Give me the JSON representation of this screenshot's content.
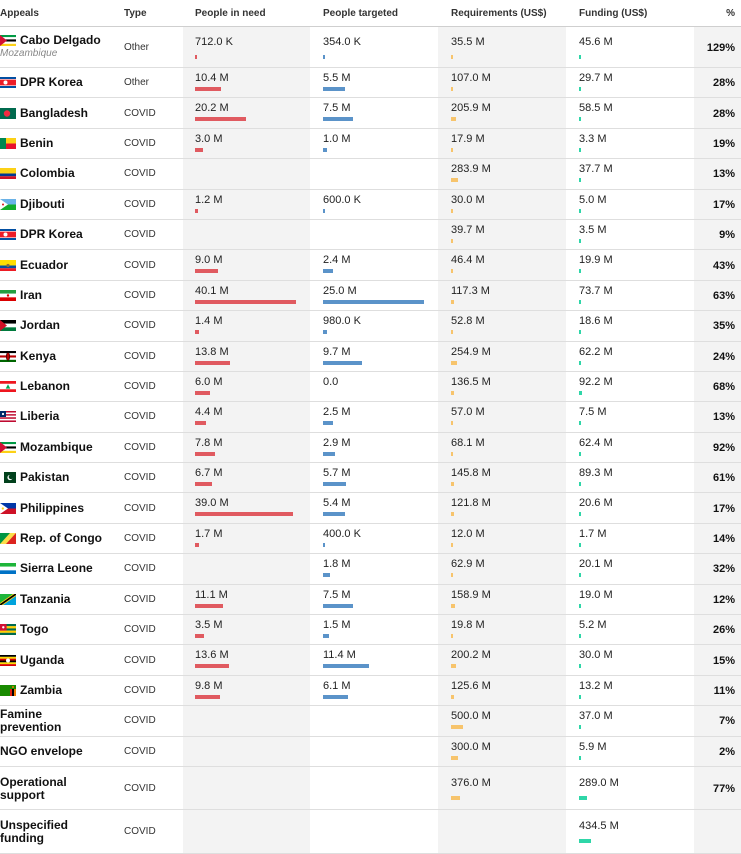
{
  "headers": {
    "appeals": "Appeals",
    "type": "Type",
    "people_in_need": "People in need",
    "people_targeted": "People targeted",
    "requirements": "Requirements (US$)",
    "funding": "Funding (US$)",
    "percent": "%"
  },
  "colors": {
    "need": "#e05a60",
    "targeted": "#5b93c9",
    "requirements": "#f7c46c",
    "funding": "#2fd6a8"
  },
  "chart_data": {
    "type": "table",
    "units": {
      "people": "M",
      "money": "US$ M"
    },
    "rows": [
      {
        "appeal": "Cabo Delgado",
        "subtitle": "Mozambique",
        "type": "Other",
        "flag": "mozambique-flag",
        "need": 0.712,
        "need_label": "712.0 K",
        "targeted": 0.354,
        "targeted_label": "354.0 K",
        "requirements": 35.5,
        "requirements_label": "35.5 M",
        "funding": 45.6,
        "funding_label": "45.6 M",
        "percent_label": "129%"
      },
      {
        "appeal": "DPR Korea",
        "type": "Other",
        "flag": "dpr-korea-flag",
        "need": 10.4,
        "need_label": "10.4 M",
        "targeted": 5.5,
        "targeted_label": "5.5 M",
        "requirements": 107.0,
        "requirements_label": "107.0 M",
        "funding": 29.7,
        "funding_label": "29.7 M",
        "percent_label": "28%"
      },
      {
        "appeal": "Bangladesh",
        "type": "COVID",
        "flag": "bangladesh-flag",
        "need": 20.2,
        "need_label": "20.2 M",
        "targeted": 7.5,
        "targeted_label": "7.5 M",
        "requirements": 205.9,
        "requirements_label": "205.9 M",
        "funding": 58.5,
        "funding_label": "58.5 M",
        "percent_label": "28%"
      },
      {
        "appeal": "Benin",
        "type": "COVID",
        "flag": "benin-flag",
        "need": 3.0,
        "need_label": "3.0 M",
        "targeted": 1.0,
        "targeted_label": "1.0 M",
        "requirements": 17.9,
        "requirements_label": "17.9 M",
        "funding": 3.3,
        "funding_label": "3.3 M",
        "percent_label": "19%"
      },
      {
        "appeal": "Colombia",
        "type": "COVID",
        "flag": "colombia-flag",
        "need": null,
        "need_label": "",
        "targeted": null,
        "targeted_label": "",
        "requirements": 283.9,
        "requirements_label": "283.9 M",
        "funding": 37.7,
        "funding_label": "37.7 M",
        "percent_label": "13%"
      },
      {
        "appeal": "Djibouti",
        "type": "COVID",
        "flag": "djibouti-flag",
        "need": 1.2,
        "need_label": "1.2 M",
        "targeted": 0.6,
        "targeted_label": "600.0 K",
        "requirements": 30.0,
        "requirements_label": "30.0 M",
        "funding": 5.0,
        "funding_label": "5.0 M",
        "percent_label": "17%"
      },
      {
        "appeal": "DPR Korea",
        "type": "COVID",
        "flag": "dpr-korea-flag",
        "need": null,
        "need_label": "",
        "targeted": null,
        "targeted_label": "",
        "requirements": 39.7,
        "requirements_label": "39.7 M",
        "funding": 3.5,
        "funding_label": "3.5 M",
        "percent_label": "9%"
      },
      {
        "appeal": "Ecuador",
        "type": "COVID",
        "flag": "ecuador-flag",
        "need": 9.0,
        "need_label": "9.0 M",
        "targeted": 2.4,
        "targeted_label": "2.4 M",
        "requirements": 46.4,
        "requirements_label": "46.4 M",
        "funding": 19.9,
        "funding_label": "19.9 M",
        "percent_label": "43%"
      },
      {
        "appeal": "Iran",
        "type": "COVID",
        "flag": "iran-flag",
        "need": 40.1,
        "need_label": "40.1 M",
        "targeted": 25.0,
        "targeted_label": "25.0 M",
        "requirements": 117.3,
        "requirements_label": "117.3 M",
        "funding": 73.7,
        "funding_label": "73.7 M",
        "percent_label": "63%"
      },
      {
        "appeal": "Jordan",
        "type": "COVID",
        "flag": "jordan-flag",
        "need": 1.4,
        "need_label": "1.4 M",
        "targeted": 0.98,
        "targeted_label": "980.0 K",
        "requirements": 52.8,
        "requirements_label": "52.8 M",
        "funding": 18.6,
        "funding_label": "18.6 M",
        "percent_label": "35%"
      },
      {
        "appeal": "Kenya",
        "type": "COVID",
        "flag": "kenya-flag",
        "need": 13.8,
        "need_label": "13.8 M",
        "targeted": 9.7,
        "targeted_label": "9.7 M",
        "requirements": 254.9,
        "requirements_label": "254.9 M",
        "funding": 62.2,
        "funding_label": "62.2 M",
        "percent_label": "24%"
      },
      {
        "appeal": "Lebanon",
        "type": "COVID",
        "flag": "lebanon-flag",
        "need": 6.0,
        "need_label": "6.0 M",
        "targeted": 0.0,
        "targeted_label": "0.0",
        "requirements": 136.5,
        "requirements_label": "136.5 M",
        "funding": 92.2,
        "funding_label": "92.2 M",
        "percent_label": "68%"
      },
      {
        "appeal": "Liberia",
        "type": "COVID",
        "flag": "liberia-flag",
        "need": 4.4,
        "need_label": "4.4 M",
        "targeted": 2.5,
        "targeted_label": "2.5 M",
        "requirements": 57.0,
        "requirements_label": "57.0 M",
        "funding": 7.5,
        "funding_label": "7.5 M",
        "percent_label": "13%"
      },
      {
        "appeal": "Mozambique",
        "type": "COVID",
        "flag": "mozambique-flag",
        "need": 7.8,
        "need_label": "7.8 M",
        "targeted": 2.9,
        "targeted_label": "2.9 M",
        "requirements": 68.1,
        "requirements_label": "68.1 M",
        "funding": 62.4,
        "funding_label": "62.4 M",
        "percent_label": "92%"
      },
      {
        "appeal": "Pakistan",
        "type": "COVID",
        "flag": "pakistan-flag",
        "need": 6.7,
        "need_label": "6.7 M",
        "targeted": 5.7,
        "targeted_label": "5.7 M",
        "requirements": 145.8,
        "requirements_label": "145.8 M",
        "funding": 89.3,
        "funding_label": "89.3 M",
        "percent_label": "61%"
      },
      {
        "appeal": "Philippines",
        "type": "COVID",
        "flag": "philippines-flag",
        "need": 39.0,
        "need_label": "39.0 M",
        "targeted": 5.4,
        "targeted_label": "5.4 M",
        "requirements": 121.8,
        "requirements_label": "121.8 M",
        "funding": 20.6,
        "funding_label": "20.6 M",
        "percent_label": "17%"
      },
      {
        "appeal": "Rep. of Congo",
        "type": "COVID",
        "flag": "congo-flag",
        "need": 1.7,
        "need_label": "1.7 M",
        "targeted": 0.4,
        "targeted_label": "400.0 K",
        "requirements": 12.0,
        "requirements_label": "12.0 M",
        "funding": 1.7,
        "funding_label": "1.7 M",
        "percent_label": "14%"
      },
      {
        "appeal": "Sierra Leone",
        "type": "COVID",
        "flag": "sierra-leone-flag",
        "need": null,
        "need_label": "",
        "targeted": 1.8,
        "targeted_label": "1.8 M",
        "requirements": 62.9,
        "requirements_label": "62.9 M",
        "funding": 20.1,
        "funding_label": "20.1 M",
        "percent_label": "32%"
      },
      {
        "appeal": "Tanzania",
        "type": "COVID",
        "flag": "tanzania-flag",
        "need": 11.1,
        "need_label": "11.1 M",
        "targeted": 7.5,
        "targeted_label": "7.5 M",
        "requirements": 158.9,
        "requirements_label": "158.9 M",
        "funding": 19.0,
        "funding_label": "19.0 M",
        "percent_label": "12%"
      },
      {
        "appeal": "Togo",
        "type": "COVID",
        "flag": "togo-flag",
        "need": 3.5,
        "need_label": "3.5 M",
        "targeted": 1.5,
        "targeted_label": "1.5 M",
        "requirements": 19.8,
        "requirements_label": "19.8 M",
        "funding": 5.2,
        "funding_label": "5.2 M",
        "percent_label": "26%"
      },
      {
        "appeal": "Uganda",
        "type": "COVID",
        "flag": "uganda-flag",
        "need": 13.6,
        "need_label": "13.6 M",
        "targeted": 11.4,
        "targeted_label": "11.4 M",
        "requirements": 200.2,
        "requirements_label": "200.2 M",
        "funding": 30.0,
        "funding_label": "30.0 M",
        "percent_label": "15%"
      },
      {
        "appeal": "Zambia",
        "type": "COVID",
        "flag": "zambia-flag",
        "need": 9.8,
        "need_label": "9.8 M",
        "targeted": 6.1,
        "targeted_label": "6.1 M",
        "requirements": 125.6,
        "requirements_label": "125.6 M",
        "funding": 13.2,
        "funding_label": "13.2 M",
        "percent_label": "11%"
      },
      {
        "appeal": "Famine prevention",
        "type": "COVID",
        "flag": "",
        "need": null,
        "need_label": "",
        "targeted": null,
        "targeted_label": "",
        "requirements": 500.0,
        "requirements_label": "500.0 M",
        "funding": 37.0,
        "funding_label": "37.0 M",
        "percent_label": "7%"
      },
      {
        "appeal": "NGO envelope",
        "type": "COVID",
        "flag": "",
        "need": null,
        "need_label": "",
        "targeted": null,
        "targeted_label": "",
        "requirements": 300.0,
        "requirements_label": "300.0 M",
        "funding": 5.9,
        "funding_label": "5.9 M",
        "percent_label": "2%"
      },
      {
        "appeal": "Operational support",
        "type": "COVID",
        "flag": "",
        "need": null,
        "need_label": "",
        "targeted": null,
        "targeted_label": "",
        "requirements": 376.0,
        "requirements_label": "376.0 M",
        "funding": 289.0,
        "funding_label": "289.0 M",
        "percent_label": "77%"
      },
      {
        "appeal": "Unspecified funding",
        "type": "COVID",
        "flag": "",
        "need": null,
        "need_label": "",
        "targeted": null,
        "targeted_label": "",
        "requirements": null,
        "requirements_label": "",
        "funding": 434.5,
        "funding_label": "434.5 M",
        "percent_label": ""
      }
    ]
  }
}
